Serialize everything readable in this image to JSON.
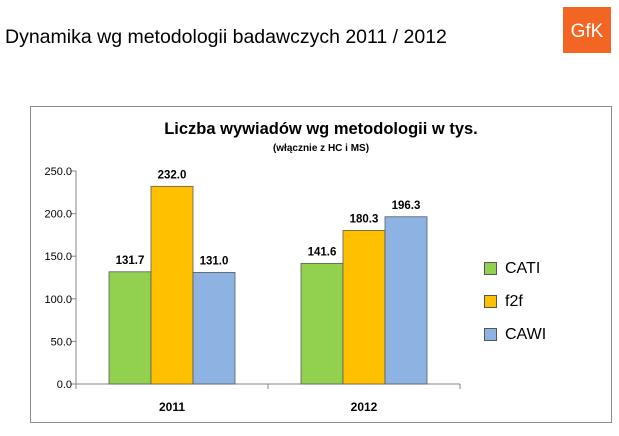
{
  "page": {
    "title": "Dynamika wg metodologii badawczych 2011 / 2012",
    "logo_text": "GfK",
    "logo_color": "#f26522"
  },
  "chart_data": {
    "type": "bar",
    "title": "Liczba wywiadów wg metodologii w tys.",
    "subtitle": "(włącznie z HC i MS)",
    "categories": [
      "2011",
      "2012"
    ],
    "series": [
      {
        "name": "CATI",
        "values": [
          131.7,
          141.6
        ],
        "color": "#92d050"
      },
      {
        "name": "f2f",
        "values": [
          232.0,
          180.3
        ],
        "color": "#ffc000"
      },
      {
        "name": "CAWI",
        "values": [
          131.0,
          196.3
        ],
        "color": "#8db3e2"
      }
    ],
    "value_labels": [
      [
        "131.7",
        "141.6"
      ],
      [
        "232.0",
        "180.3"
      ],
      [
        "131.0",
        "196.3"
      ]
    ],
    "yticks": [
      "0.0",
      "50.0",
      "100.0",
      "150.0",
      "200.0",
      "250.0"
    ],
    "ylim": [
      0,
      250
    ],
    "grid": false,
    "legend_position": "right"
  }
}
